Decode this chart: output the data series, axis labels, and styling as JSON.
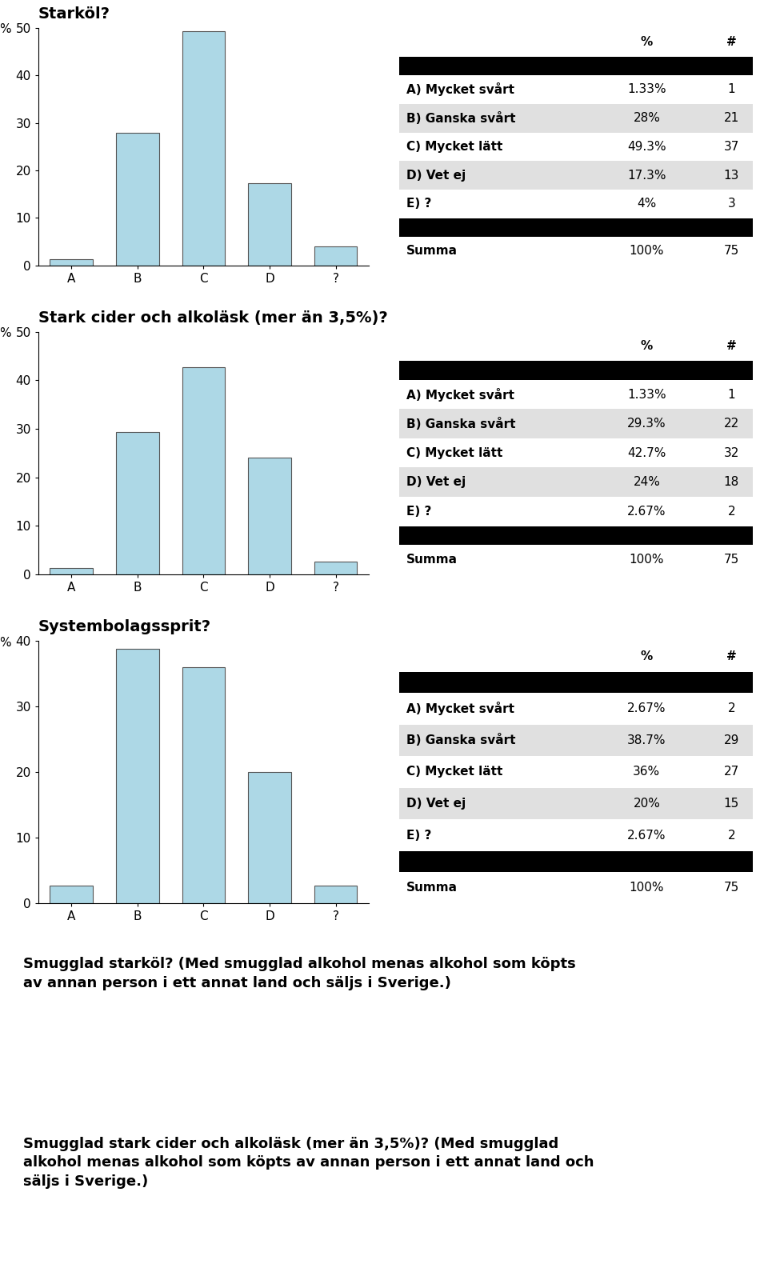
{
  "sections": [
    {
      "title": "Starköl?",
      "bar_values": [
        1.33,
        28,
        49.3,
        17.3,
        4
      ],
      "ylim": [
        0,
        50
      ],
      "yticks": [
        0,
        10,
        20,
        30,
        40,
        50
      ],
      "table_rows": [
        [
          "A) Mycket svårt",
          "1.33%",
          "1"
        ],
        [
          "B) Ganska svårt",
          "28%",
          "21"
        ],
        [
          "C) Mycket lätt",
          "49.3%",
          "37"
        ],
        [
          "D) Vet ej",
          "17.3%",
          "13"
        ],
        [
          "E) ?",
          "4%",
          "3"
        ]
      ],
      "summa": [
        "Summa",
        "100%",
        "75"
      ]
    },
    {
      "title": "Stark cider och alkoläsk (mer än 3,5%)?",
      "bar_values": [
        1.33,
        29.3,
        42.7,
        24,
        2.67
      ],
      "ylim": [
        0,
        50
      ],
      "yticks": [
        0,
        10,
        20,
        30,
        40,
        50
      ],
      "table_rows": [
        [
          "A) Mycket svårt",
          "1.33%",
          "1"
        ],
        [
          "B) Ganska svårt",
          "29.3%",
          "22"
        ],
        [
          "C) Mycket lätt",
          "42.7%",
          "32"
        ],
        [
          "D) Vet ej",
          "24%",
          "18"
        ],
        [
          "E) ?",
          "2.67%",
          "2"
        ]
      ],
      "summa": [
        "Summa",
        "100%",
        "75"
      ]
    },
    {
      "title": "Systembolagssprit?",
      "bar_values": [
        2.67,
        38.7,
        36,
        20,
        2.67
      ],
      "ylim": [
        0,
        40
      ],
      "yticks": [
        0,
        10,
        20,
        30,
        40
      ],
      "table_rows": [
        [
          "A) Mycket svårt",
          "2.67%",
          "2"
        ],
        [
          "B) Ganska svårt",
          "38.7%",
          "29"
        ],
        [
          "C) Mycket lätt",
          "36%",
          "27"
        ],
        [
          "D) Vet ej",
          "20%",
          "15"
        ],
        [
          "E) ?",
          "2.67%",
          "2"
        ]
      ],
      "summa": [
        "Summa",
        "100%",
        "75"
      ]
    }
  ],
  "footer_text1": "Smugglad starköl? (Med smugglad alkohol menas alkohol som köpts\nav annan person i ett annat land och säljs i Sverige.)",
  "footer_text2": "Smugglad stark cider och alkoläsk (mer än 3,5%)? (Med smugglad\nalkohol menas alkohol som köpts av annan person i ett annat land och\nsäljs i Sverige.)",
  "bar_color": "#add8e6",
  "bar_edge_color": "#555555",
  "bar_categories": [
    "A",
    "B",
    "C",
    "D",
    "?"
  ],
  "ylabel": "%",
  "black_color": "#000000",
  "header_pct": "%",
  "header_num": "#",
  "row_alt_color": "#e0e0e0",
  "row_white_color": "#ffffff",
  "background_color": "#ffffff",
  "title_fontsize": 14,
  "table_label_fontsize": 11,
  "table_val_fontsize": 11,
  "bar_tick_fontsize": 11,
  "footer_fontsize": 13
}
